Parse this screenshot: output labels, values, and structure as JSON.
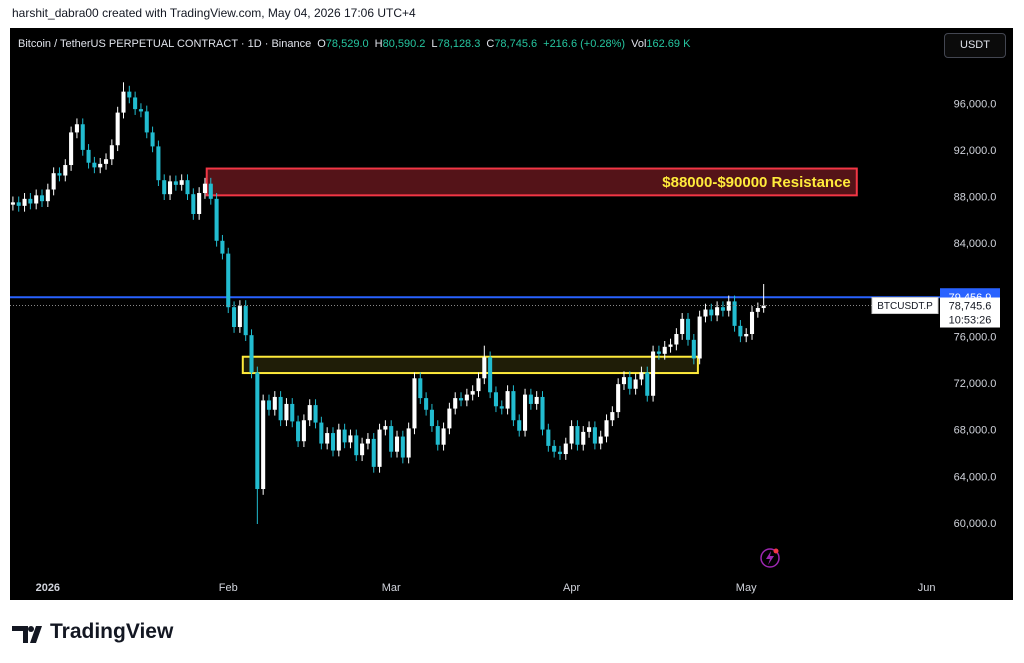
{
  "header": {
    "credit": "harshit_dabra00 created with TradingView.com, May 04, 2026 17:06 UTC+4",
    "brand": "TradingView"
  },
  "chart_data": {
    "type": "candlestick",
    "title": "Bitcoin / TetherUS PERPETUAL CONTRACT · 1D · Binance",
    "ohlc_legend": [
      {
        "label": "O",
        "value": "78,529.0"
      },
      {
        "label": "H",
        "value": "80,590.2"
      },
      {
        "label": "L",
        "value": "78,128.3"
      },
      {
        "label": "C",
        "value": "78,745.6"
      },
      {
        "label": "",
        "value": "+216.6 (+0.28%)"
      },
      {
        "label": "Vol",
        "value": "162.69 K"
      }
    ],
    "currency": "USDT",
    "up_color": "#ffffff",
    "down_color": "#22bcd0",
    "legend_value_color": "#26c6a0",
    "open": [
      87400,
      87600,
      87300,
      87900,
      87500,
      88200,
      87700,
      88700,
      90100,
      89900,
      90800,
      93600,
      94300,
      92100,
      91000,
      90600,
      90900,
      91300,
      92500,
      95300,
      97100,
      96600,
      95600,
      95400,
      93600,
      92400,
      89500,
      88300,
      89400,
      89100,
      89500,
      88300,
      86600,
      88400,
      89200,
      87900,
      84300,
      83200,
      78600,
      76900,
      78700,
      76200,
      73000,
      63000,
      70600,
      69800,
      70900,
      68900,
      70300,
      68800,
      67100,
      68900,
      70200,
      68700,
      66900,
      67800,
      66300,
      68100,
      67000,
      67600,
      65900,
      66900,
      67300,
      64900,
      68100,
      68400,
      66200,
      67500,
      65700,
      68200,
      72500,
      70800,
      69800,
      68400,
      66800,
      68200,
      69900,
      70800,
      70600,
      71100,
      71400,
      72500,
      74300,
      71300,
      70100,
      69900,
      71400,
      68900,
      68000,
      71100,
      70300,
      70900,
      68100,
      66700,
      66200,
      66000,
      66900,
      68400,
      66800,
      67900,
      68300,
      66900,
      67500,
      68900,
      69600,
      72000,
      72600,
      71600,
      72400,
      73000,
      71000,
      74800,
      74600,
      75200,
      75400,
      76300,
      77600,
      75800,
      74200,
      77800,
      78400,
      77900,
      78600,
      78300,
      79100,
      77000,
      76100,
      76300,
      78200,
      78529
    ],
    "high": [
      88100,
      88100,
      88400,
      88400,
      88700,
      88700,
      89200,
      90600,
      90600,
      91300,
      94100,
      94800,
      94800,
      92600,
      91500,
      91400,
      91800,
      93000,
      95800,
      97900,
      97600,
      97100,
      96100,
      95900,
      94100,
      92900,
      90000,
      89900,
      89900,
      90000,
      90000,
      88800,
      88900,
      89700,
      89700,
      88400,
      84800,
      83700,
      79100,
      79200,
      79200,
      76700,
      73500,
      71100,
      71100,
      71400,
      71400,
      70800,
      70800,
      69300,
      69400,
      70700,
      70700,
      69200,
      68300,
      68300,
      68600,
      68600,
      68100,
      68100,
      67400,
      67800,
      67800,
      68600,
      68900,
      68900,
      68000,
      68000,
      68700,
      73000,
      73000,
      71300,
      70300,
      68900,
      68700,
      70400,
      71300,
      71300,
      71600,
      71900,
      73000,
      75300,
      74800,
      71800,
      70600,
      71900,
      71900,
      69400,
      71600,
      71600,
      71400,
      71400,
      68600,
      67200,
      66700,
      67400,
      68900,
      68900,
      68400,
      68800,
      68800,
      68000,
      69400,
      70100,
      72500,
      73100,
      73100,
      72900,
      73500,
      73500,
      75300,
      75300,
      75700,
      75900,
      76800,
      78100,
      78100,
      76300,
      78300,
      78900,
      78900,
      79100,
      79100,
      79600,
      79600,
      77500,
      76800,
      78700,
      79000,
      80590.2
    ],
    "low": [
      86900,
      86800,
      86800,
      87000,
      87000,
      87200,
      87200,
      88200,
      89400,
      89400,
      90300,
      93100,
      91600,
      90500,
      90100,
      90100,
      90400,
      90800,
      92000,
      94800,
      96100,
      95100,
      94900,
      93100,
      91900,
      89000,
      87800,
      87800,
      88600,
      88600,
      87800,
      86100,
      86100,
      87900,
      87400,
      83800,
      82700,
      78100,
      76400,
      76400,
      75700,
      72500,
      60000,
      62500,
      69300,
      69300,
      68400,
      68400,
      68300,
      66600,
      66600,
      68400,
      68200,
      66400,
      66400,
      65800,
      65800,
      66500,
      66500,
      65400,
      65400,
      66400,
      64400,
      64400,
      67600,
      65700,
      65700,
      65200,
      65200,
      67700,
      70300,
      69300,
      67900,
      66300,
      66300,
      67700,
      69400,
      70100,
      70100,
      70600,
      70900,
      72000,
      70800,
      69600,
      69400,
      69400,
      68400,
      67500,
      67500,
      69800,
      69800,
      67600,
      66200,
      65700,
      65500,
      65500,
      66400,
      66300,
      66300,
      67400,
      66400,
      66400,
      67000,
      68400,
      69100,
      71500,
      71100,
      71100,
      71900,
      70500,
      70500,
      74100,
      74100,
      74700,
      74900,
      75800,
      75300,
      73700,
      73700,
      77300,
      77400,
      77400,
      77800,
      77800,
      76500,
      75600,
      75600,
      75800,
      77700,
      78128.3
    ],
    "close": [
      87600,
      87300,
      87900,
      87500,
      88200,
      87700,
      88700,
      90100,
      89900,
      90800,
      93600,
      94300,
      92100,
      91000,
      90600,
      90900,
      91300,
      92500,
      95300,
      97100,
      96600,
      95600,
      95400,
      93600,
      92400,
      89500,
      88300,
      89400,
      89100,
      89500,
      88300,
      86600,
      88400,
      89200,
      87900,
      84300,
      83200,
      78600,
      76900,
      78700,
      76200,
      73000,
      63000,
      70600,
      69800,
      70900,
      68900,
      70300,
      68800,
      67100,
      68900,
      70200,
      68700,
      66900,
      67800,
      66300,
      68100,
      67000,
      67600,
      65900,
      66900,
      67300,
      64900,
      68100,
      68400,
      66200,
      67500,
      65700,
      68200,
      72500,
      70800,
      69800,
      68400,
      66800,
      68200,
      69900,
      70800,
      70600,
      71100,
      71400,
      72500,
      74300,
      71300,
      70100,
      69900,
      71400,
      68900,
      68000,
      71100,
      70300,
      70900,
      68100,
      66700,
      66200,
      66000,
      66900,
      68400,
      66800,
      67900,
      68300,
      66900,
      67500,
      68900,
      69600,
      72000,
      72600,
      71600,
      72400,
      73000,
      71000,
      74800,
      74600,
      75200,
      75400,
      76300,
      77600,
      75800,
      74200,
      77800,
      78400,
      77900,
      78600,
      78300,
      79100,
      77000,
      76100,
      76300,
      78200,
      78529,
      78745.6
    ],
    "xlim": [
      -0.5,
      159.3
    ],
    "xticks": [
      {
        "value": 6,
        "label": "2026"
      },
      {
        "value": 37,
        "label": "Feb"
      },
      {
        "value": 65,
        "label": "Mar"
      },
      {
        "value": 96,
        "label": "Apr"
      },
      {
        "value": 126,
        "label": "May"
      },
      {
        "value": 157,
        "label": "Jun"
      }
    ],
    "ylim": [
      55620,
      102560
    ],
    "yticks": [
      {
        "value": 96000,
        "label": "96,000.0"
      },
      {
        "value": 92000,
        "label": "92,000.0"
      },
      {
        "value": 88000,
        "label": "88,000.0"
      },
      {
        "value": 84000,
        "label": "84,000.0"
      },
      {
        "value": 76000,
        "label": "76,000.0"
      },
      {
        "value": 72000,
        "label": "72,000.0"
      },
      {
        "value": 68000,
        "label": "68,000.0"
      },
      {
        "value": 64000,
        "label": "64,000.0"
      },
      {
        "value": 60000,
        "label": "60,000.0"
      }
    ],
    "zones": [
      {
        "label": "$88000-$90000 Resistance",
        "low": 88200,
        "high": 90500,
        "start": 33.3,
        "end": 145,
        "color": "#f23645",
        "label_color": "#ffeb3b"
      },
      {
        "low": 72950,
        "high": 74350,
        "start": 39.5,
        "end": 117.7,
        "color": "#ffeb3b"
      }
    ],
    "hline": {
      "value": 79456.9,
      "label": "79,456.9",
      "color": "#2962ff"
    },
    "last_price": {
      "symbol": "BTCUSDT.P",
      "value": 78745.6,
      "label": "78,745.6",
      "countdown": "10:53:26"
    }
  }
}
